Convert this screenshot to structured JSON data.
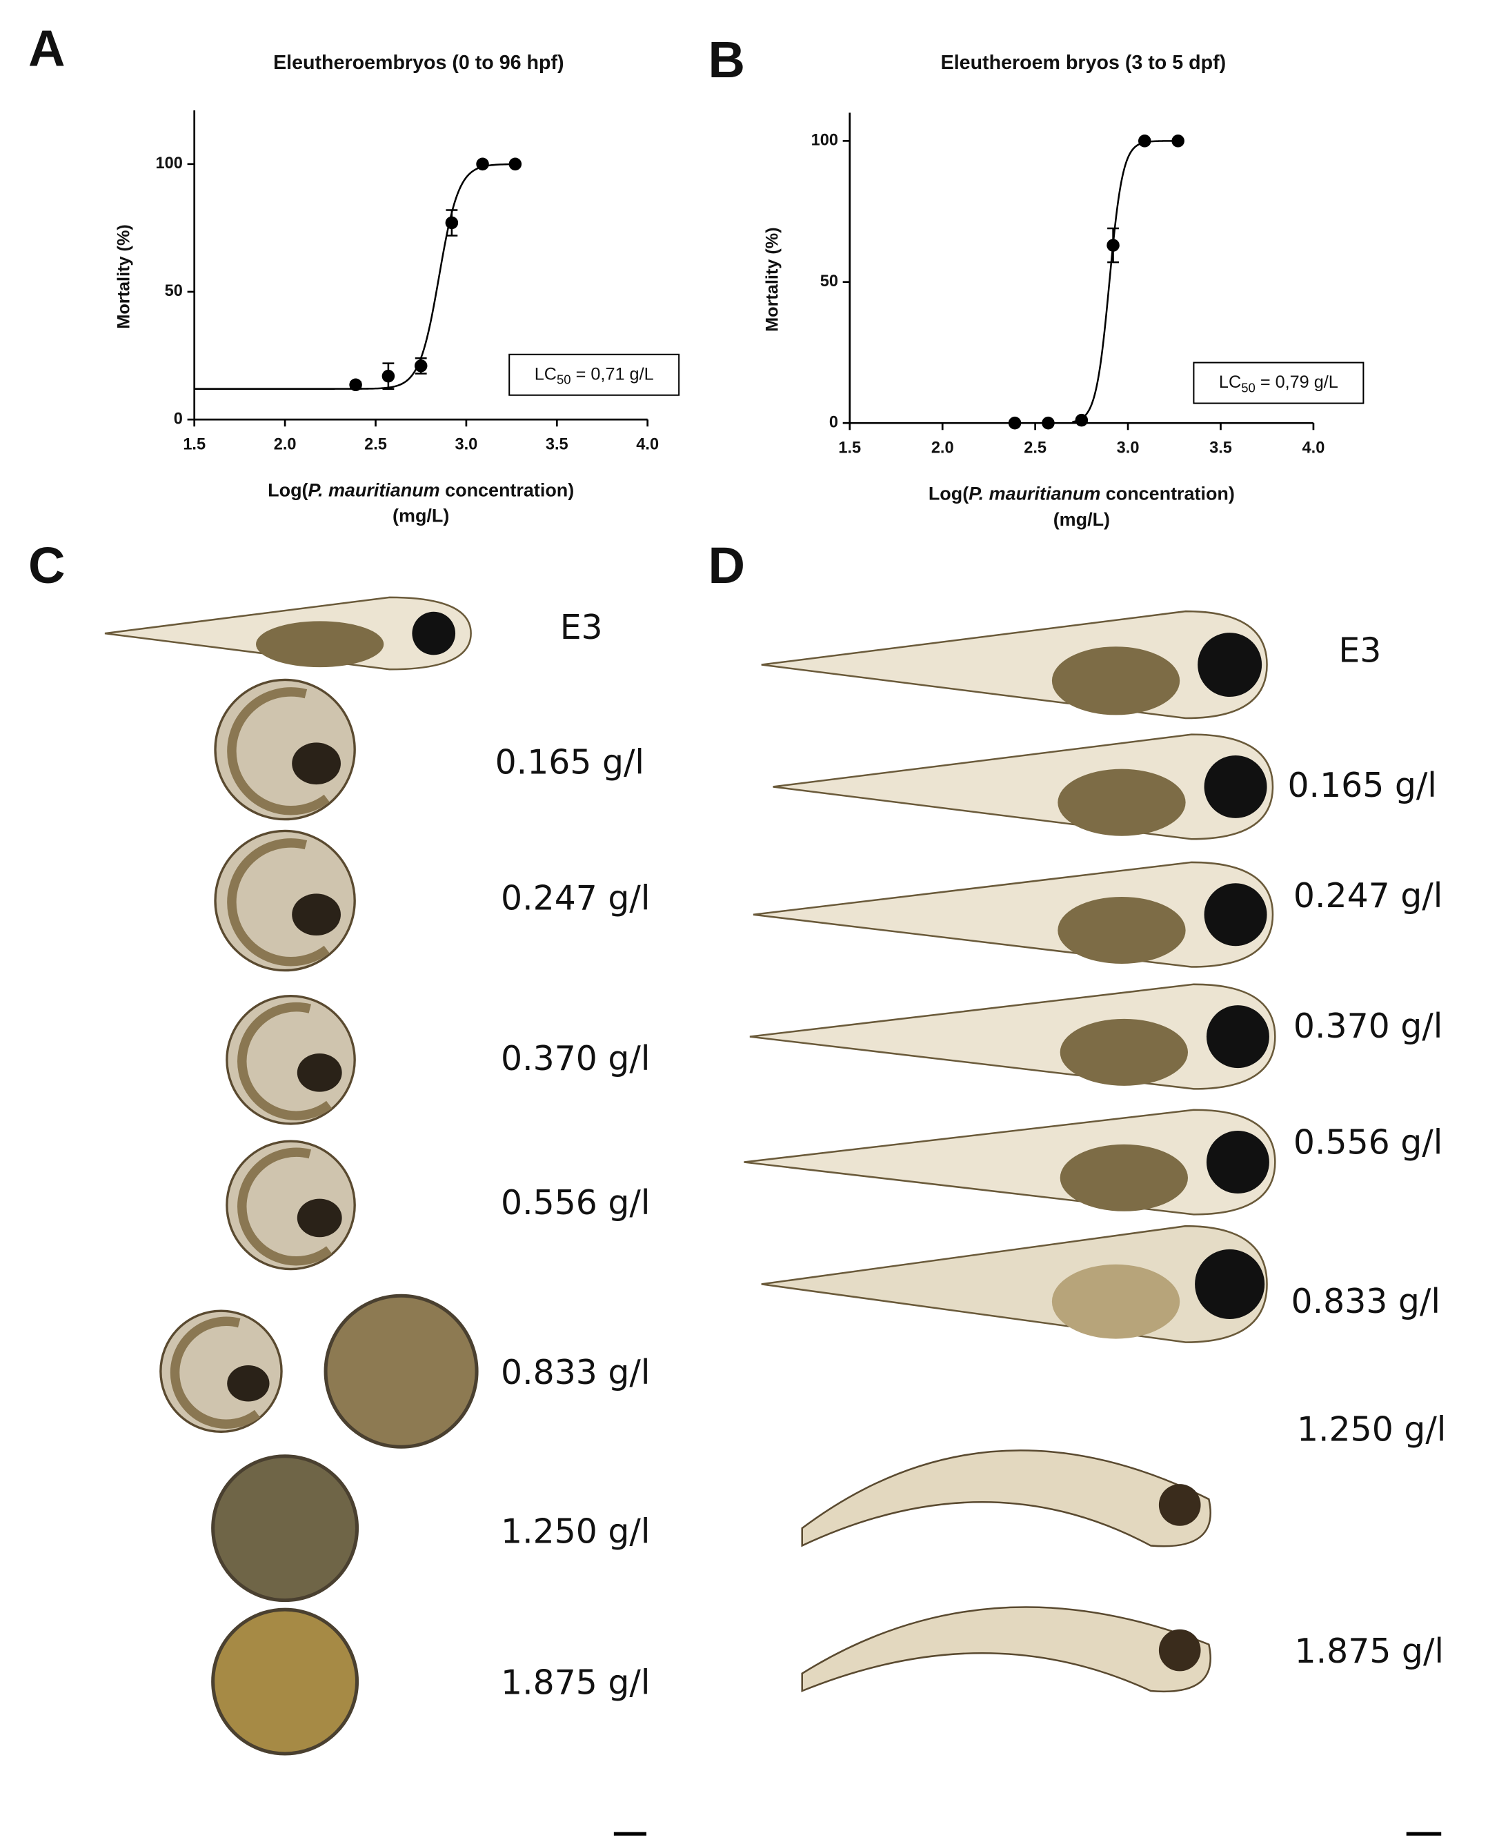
{
  "chart_data": [
    {
      "type": "scatter",
      "panel_label": "A",
      "title": "Eleutheroembryos (0 to 96 hpf)",
      "x_label": [
        "Log(",
        "P. mauritianum",
        " concentration)",
        "(mg/L)"
      ],
      "y_label": "Mortality (%)",
      "x": [
        2.39,
        2.57,
        2.75,
        2.92,
        3.09,
        3.27
      ],
      "values": [
        13.6,
        17,
        21,
        77,
        100,
        100
      ],
      "errors": [
        1,
        5,
        3,
        5,
        0,
        0
      ],
      "color": "#000000",
      "xlim": [
        1.5,
        4.0
      ],
      "xticks": [
        1.5,
        {
          "value": 2,
          "label": "2.0"
        },
        2.5,
        {
          "value": 3,
          "label": "3.0"
        },
        3.5,
        {
          "value": 4,
          "label": "4.0"
        }
      ],
      "ylim": [
        0,
        121
      ],
      "yticks": [
        0,
        50,
        100
      ],
      "fit": {
        "bottom": 12,
        "top": 100,
        "log_ec50": 2.85,
        "hill_slope": 8,
        "range": [
          1.5,
          3.27
        ]
      },
      "annotation": [
        "LC",
        "50",
        " = 0,71 g/L"
      ]
    },
    {
      "type": "scatter",
      "panel_label": "B",
      "title": "Eleutheroem bryos (3 to 5 dpf)",
      "x_label": [
        "Log(",
        "P. mauritianum",
        " concentration)",
        "(mg/L)"
      ],
      "y_label": "Mortality (%)",
      "x": [
        2.39,
        2.57,
        2.75,
        2.92,
        3.09,
        3.27
      ],
      "values": [
        0,
        0,
        1,
        63,
        100,
        100
      ],
      "errors": [
        0,
        0,
        0,
        6,
        0,
        0
      ],
      "color": "#000000",
      "xlim": [
        1.5,
        4.0
      ],
      "xticks": [
        1.5,
        {
          "value": 2,
          "label": "2.0"
        },
        2.5,
        {
          "value": 3,
          "label": "3.0"
        },
        3.5,
        {
          "value": 4,
          "label": "4.0"
        }
      ],
      "ylim": [
        0,
        110
      ],
      "yticks": [
        0,
        50,
        100
      ],
      "fit": {
        "bottom": 0,
        "top": 100,
        "log_ec50": 2.9,
        "hill_slope": 12,
        "range": [
          2.7,
          3.27
        ]
      },
      "annotation": [
        "LC",
        "50",
        " = 0,79 g/L"
      ]
    }
  ],
  "panels": [
    {
      "label": "C",
      "conditions": [
        "E3",
        "0.165 g/l",
        "0.247 g/l",
        "0.370 g/l",
        "0.556 g/l",
        "0.833 g/l",
        "1.250 g/l",
        "1.875 g/l"
      ]
    },
    {
      "label": "D",
      "conditions": [
        "E3",
        "0.165 g/l",
        "0.247 g/l",
        "0.370 g/l",
        "0.556 g/l",
        "0.833 g/l",
        "1.250 g/l",
        "1.875 g/l"
      ]
    }
  ]
}
